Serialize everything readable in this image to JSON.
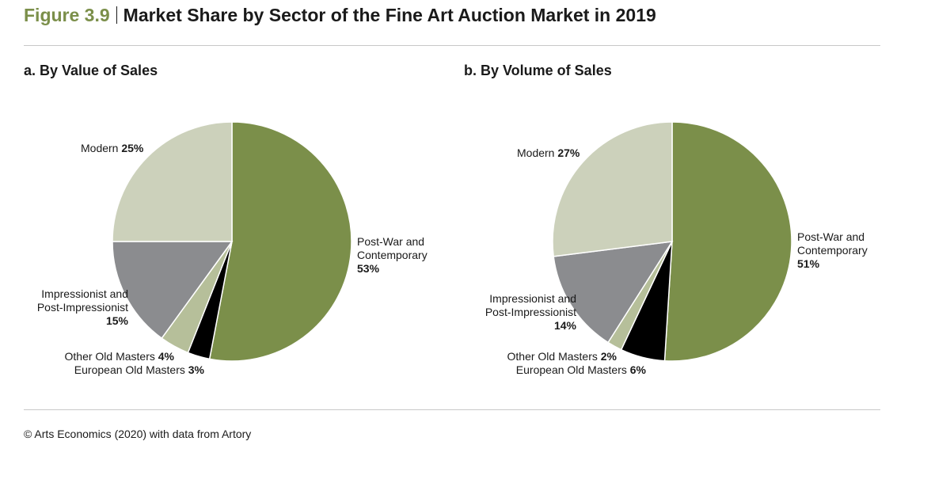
{
  "header": {
    "figure_number": "Figure 3.9",
    "title": "Market Share by Sector of the Fine Art Auction Market in 2019"
  },
  "source": "© Arts Economics (2020) with data from Artory",
  "colors": {
    "figure_number": "#7b8f4a",
    "post_war": "#7b8f4a",
    "modern": "#ccd1bb",
    "impressionist": "#8b8c8f",
    "other_old_masters": "#b6bf9a",
    "european_old_masters": "#000000"
  },
  "chart_data": [
    {
      "type": "pie",
      "title": "a. By Value of Sales",
      "slices": [
        {
          "label_line1": "Post-War and",
          "label_line2": "Contemporary",
          "value": 53,
          "value_label": "53%",
          "color": "#7b8f4a"
        },
        {
          "label_line1": "European Old Masters",
          "value": 3,
          "value_label": "3%",
          "color": "#000000"
        },
        {
          "label_line1": "Other Old Masters",
          "value": 4,
          "value_label": "4%",
          "color": "#b6bf9a"
        },
        {
          "label_line1": "Impressionist and",
          "label_line2": "Post-Impressionist",
          "value": 15,
          "value_label": "15%",
          "color": "#8b8c8f"
        },
        {
          "label_line1": "Modern",
          "value": 25,
          "value_label": "25%",
          "color": "#ccd1bb"
        }
      ]
    },
    {
      "type": "pie",
      "title": "b. By Volume of Sales",
      "slices": [
        {
          "label_line1": "Post-War and",
          "label_line2": "Contemporary",
          "value": 51,
          "value_label": "51%",
          "color": "#7b8f4a"
        },
        {
          "label_line1": "European Old Masters",
          "value": 6,
          "value_label": "6%",
          "color": "#000000"
        },
        {
          "label_line1": "Other Old Masters",
          "value": 2,
          "value_label": "2%",
          "color": "#b6bf9a"
        },
        {
          "label_line1": "Impressionist and",
          "label_line2": "Post-Impressionist",
          "value": 14,
          "value_label": "14%",
          "color": "#8b8c8f"
        },
        {
          "label_line1": "Modern",
          "value": 27,
          "value_label": "27%",
          "color": "#ccd1bb"
        }
      ]
    }
  ]
}
